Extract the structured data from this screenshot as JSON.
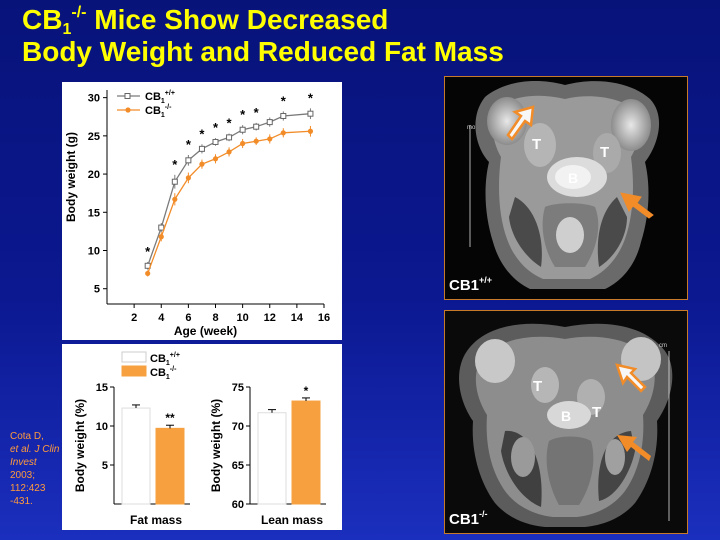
{
  "title": {
    "line1_pre": "CB",
    "line1_sub": "1",
    "line1_sup": "-/-",
    "line1_post": " Mice Show Decreased",
    "line2": "Body Weight and Reduced Fat Mass"
  },
  "citation": {
    "authors": "Cota D,",
    "etal": "et al. J Clin Invest",
    "year": "2003;",
    "pages1": "112:423",
    "pages2": "-431."
  },
  "mri": {
    "wt_label_base": "CB1",
    "wt_label_sup": "+/+",
    "ko_label_base": "CB1",
    "ko_label_sup": "-/-",
    "marker_T": "T",
    "marker_B": "B",
    "wt_scale_text": "mo",
    "ko_scale_text": "cm"
  },
  "chart_data": [
    {
      "type": "line",
      "xlabel": "Age (week)",
      "ylabel": "Body weight (g)",
      "xlim": [
        0,
        16
      ],
      "ylim": [
        3,
        31
      ],
      "xticks": [
        2,
        4,
        6,
        8,
        10,
        12,
        14,
        16
      ],
      "yticks": [
        5,
        10,
        15,
        20,
        25,
        30
      ],
      "legend": "top-left",
      "x": [
        3,
        4,
        5,
        6,
        7,
        8,
        9,
        10,
        11,
        12,
        13,
        15
      ],
      "series": [
        {
          "name_base": "CB",
          "name_sub": "1",
          "name_sup": "+/+",
          "marker": "open-square",
          "color": "#7a7a7a",
          "values": [
            8.0,
            13.0,
            19.0,
            21.8,
            23.3,
            24.2,
            24.8,
            25.8,
            26.2,
            26.8,
            27.6,
            27.9
          ],
          "errors": [
            0.5,
            0.6,
            0.9,
            0.7,
            0.6,
            0.5,
            0.5,
            0.6,
            0.5,
            0.6,
            0.6,
            0.7
          ]
        },
        {
          "name_base": "CB",
          "name_sub": "1",
          "name_sup": "-/-",
          "marker": "filled-circle",
          "color": "#f28c28",
          "values": [
            7.0,
            11.8,
            16.7,
            19.5,
            21.3,
            22.0,
            22.9,
            24.0,
            24.3,
            24.6,
            25.4,
            25.6
          ],
          "errors": [
            0.4,
            0.6,
            0.8,
            0.7,
            0.6,
            0.6,
            0.6,
            0.6,
            0.5,
            0.6,
            0.6,
            0.7
          ]
        }
      ],
      "significance_x": [
        3,
        5,
        6,
        7,
        8,
        9,
        10,
        11,
        13,
        15
      ],
      "significance_label": "*"
    },
    {
      "type": "bar",
      "ylabel": "Body weight (%)",
      "xlabel": "Fat mass",
      "ylim": [
        0,
        15
      ],
      "yticks": [
        5,
        10,
        15
      ],
      "categories": [
        "CB1+/+",
        "CB1-/-"
      ],
      "values": [
        12.3,
        9.7
      ],
      "errors": [
        0.4,
        0.4
      ],
      "colors": [
        "#ffffff",
        "#f7a040"
      ],
      "significance": "**",
      "legend": "top",
      "legend_entries": [
        {
          "base": "CB",
          "sub": "1",
          "sup": "+/+",
          "color": "#ffffff"
        },
        {
          "base": "CB",
          "sub": "1",
          "sup": "-/-",
          "color": "#f7a040"
        }
      ]
    },
    {
      "type": "bar",
      "ylabel": "Body weight (%)",
      "xlabel": "Lean mass",
      "ylim": [
        60,
        75
      ],
      "yticks": [
        60,
        65,
        70,
        75
      ],
      "categories": [
        "CB1+/+",
        "CB1-/-"
      ],
      "values": [
        71.7,
        73.2
      ],
      "errors": [
        0.4,
        0.4
      ],
      "colors": [
        "#ffffff",
        "#f7a040"
      ],
      "significance": "*"
    }
  ]
}
